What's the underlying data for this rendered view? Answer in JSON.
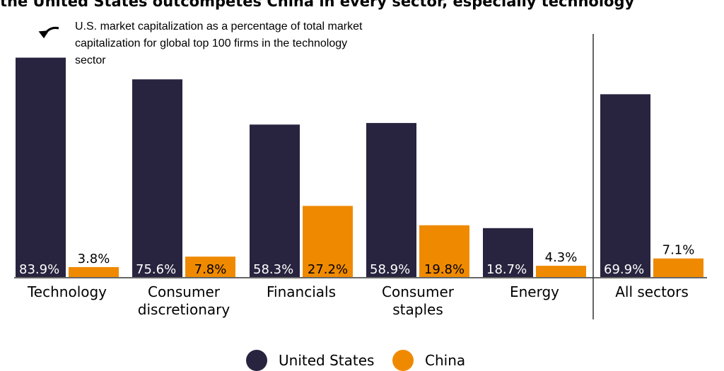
{
  "title": "the United States outcompetes China in every sector, especially technology",
  "chart_data": {
    "type": "bar",
    "categories": [
      "Technology",
      "Consumer discretionary",
      "Financials",
      "Consumer staples",
      "Energy",
      "All sectors"
    ],
    "category_lines": [
      [
        "Technology"
      ],
      [
        "Consumer",
        "discretionary"
      ],
      [
        "Financials"
      ],
      [
        "Consumer",
        "staples"
      ],
      [
        "Energy"
      ],
      [
        "All sectors"
      ]
    ],
    "series": [
      {
        "name": "United States",
        "color": "#28233e",
        "values": [
          83.9,
          75.6,
          58.3,
          58.9,
          18.7,
          69.9
        ],
        "labels": [
          "83.9%",
          "75.6%",
          "58.3%",
          "58.9%",
          "18.7%",
          "69.9%"
        ]
      },
      {
        "name": "China",
        "color": "#ef8a00",
        "values": [
          3.8,
          7.8,
          27.2,
          19.8,
          4.3,
          7.1
        ],
        "labels": [
          "3.8%",
          "7.8%",
          "27.2%",
          "19.8%",
          "4.3%",
          "7.1%"
        ]
      }
    ],
    "annotation": "U.S. market capitalization as a percentage of total market capitalization for global top 100 firms in the technology sector",
    "annotation_lines": [
      "U.S. market capitalization as a percentage of total market",
      "capitalization for global top 100 firms in the technology",
      "sector"
    ],
    "ylim": [
      0,
      100
    ],
    "grid": false,
    "legend": "bottom-center"
  }
}
